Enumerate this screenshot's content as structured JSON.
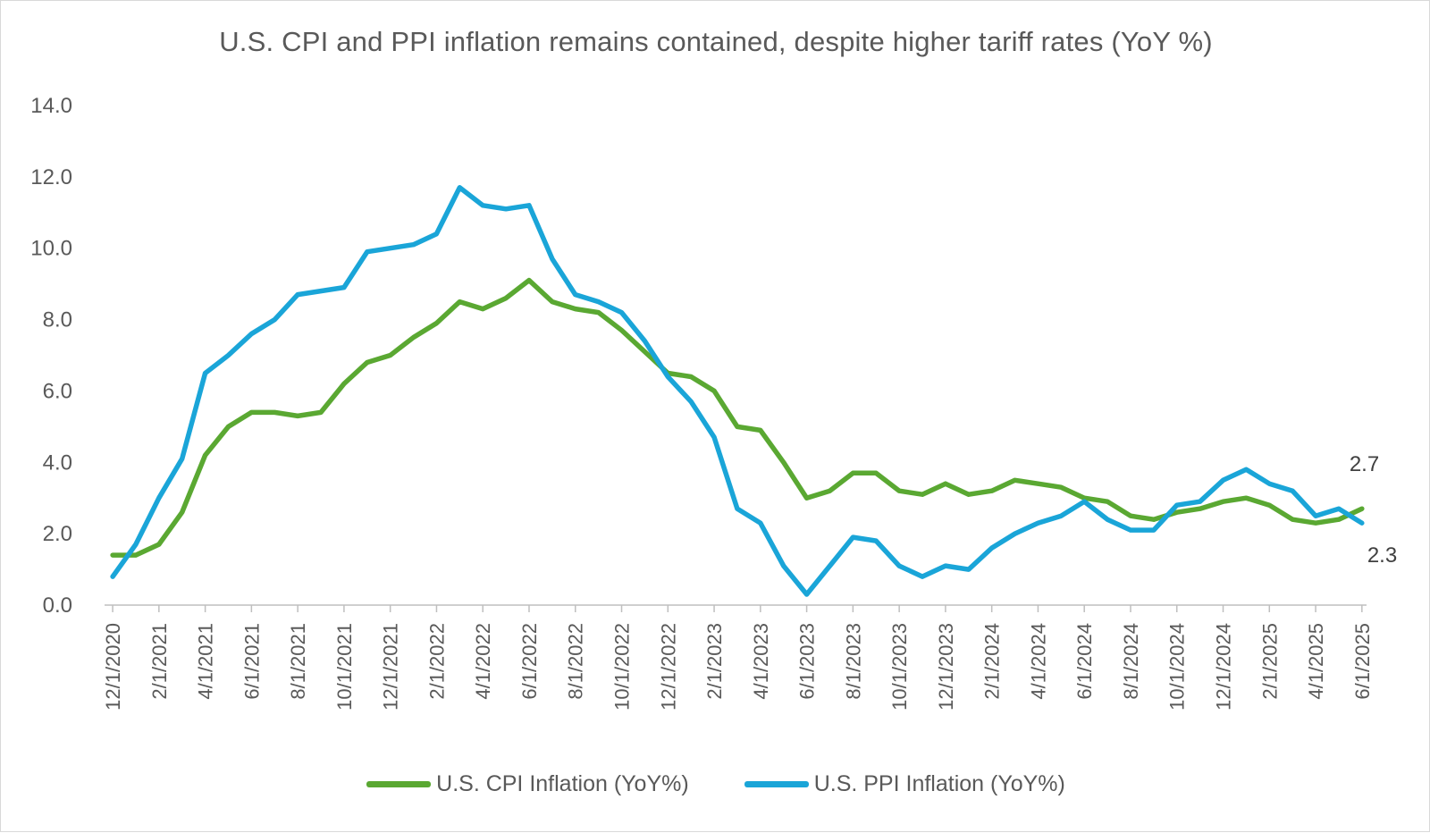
{
  "chart_data": {
    "type": "line",
    "title": "U.S. CPI and PPI inflation remains contained, despite higher tariff rates (YoY %)",
    "ylim": [
      0,
      14
    ],
    "yticks": [
      "0.0",
      "2.0",
      "4.0",
      "6.0",
      "8.0",
      "10.0",
      "12.0",
      "14.0"
    ],
    "x": [
      "12/1/2020",
      "1/1/2021",
      "2/1/2021",
      "3/1/2021",
      "4/1/2021",
      "5/1/2021",
      "6/1/2021",
      "7/1/2021",
      "8/1/2021",
      "9/1/2021",
      "10/1/2021",
      "11/1/2021",
      "12/1/2021",
      "1/1/2022",
      "2/1/2022",
      "3/1/2022",
      "4/1/2022",
      "5/1/2022",
      "6/1/2022",
      "7/1/2022",
      "8/1/2022",
      "9/1/2022",
      "10/1/2022",
      "11/1/2022",
      "12/1/2022",
      "1/1/2023",
      "2/1/2023",
      "3/1/2023",
      "4/1/2023",
      "5/1/2023",
      "6/1/2023",
      "7/1/2023",
      "8/1/2023",
      "9/1/2023",
      "10/1/2023",
      "11/1/2023",
      "12/1/2023",
      "1/1/2024",
      "2/1/2024",
      "3/1/2024",
      "4/1/2024",
      "5/1/2024",
      "6/1/2024",
      "7/1/2024",
      "8/1/2024",
      "9/1/2024",
      "10/1/2024",
      "11/1/2024",
      "12/1/2024",
      "1/1/2025",
      "2/1/2025",
      "3/1/2025",
      "4/1/2025",
      "5/1/2025",
      "6/1/2025"
    ],
    "xtick_labels": [
      "12/1/2020",
      "2/1/2021",
      "4/1/2021",
      "6/1/2021",
      "8/1/2021",
      "10/1/2021",
      "12/1/2021",
      "2/1/2022",
      "4/1/2022",
      "6/1/2022",
      "8/1/2022",
      "10/1/2022",
      "12/1/2022",
      "2/1/2023",
      "4/1/2023",
      "6/1/2023",
      "8/1/2023",
      "10/1/2023",
      "12/1/2023",
      "2/1/2024",
      "4/1/2024",
      "6/1/2024",
      "8/1/2024",
      "10/1/2024",
      "12/1/2024",
      "2/1/2025",
      "4/1/2025",
      "6/1/2025"
    ],
    "series": [
      {
        "name": "U.S. CPI Inflation (YoY%)",
        "color": "#5aa832",
        "values": [
          1.4,
          1.4,
          1.7,
          2.6,
          4.2,
          5.0,
          5.4,
          5.4,
          5.3,
          5.4,
          6.2,
          6.8,
          7.0,
          7.5,
          7.9,
          8.5,
          8.3,
          8.6,
          9.1,
          8.5,
          8.3,
          8.2,
          7.7,
          7.1,
          6.5,
          6.4,
          6.0,
          5.0,
          4.9,
          4.0,
          3.0,
          3.2,
          3.7,
          3.7,
          3.2,
          3.1,
          3.4,
          3.1,
          3.2,
          3.5,
          3.4,
          3.3,
          3.0,
          2.9,
          2.5,
          2.4,
          2.6,
          2.7,
          2.9,
          3.0,
          2.8,
          2.4,
          2.3,
          2.4,
          2.7
        ],
        "end_label": "2.7"
      },
      {
        "name": "U.S. PPI Inflation (YoY%)",
        "color": "#1aa5d8",
        "values": [
          0.8,
          1.7,
          3.0,
          4.1,
          6.5,
          7.0,
          7.6,
          8.0,
          8.7,
          8.8,
          8.9,
          9.9,
          10.0,
          10.1,
          10.4,
          11.7,
          11.2,
          11.1,
          11.2,
          9.7,
          8.7,
          8.5,
          8.2,
          7.4,
          6.4,
          5.7,
          4.7,
          2.7,
          2.3,
          1.1,
          0.3,
          1.1,
          1.9,
          1.8,
          1.1,
          0.8,
          1.1,
          1.0,
          1.6,
          2.0,
          2.3,
          2.5,
          2.9,
          2.4,
          2.1,
          2.1,
          2.8,
          2.9,
          3.5,
          3.8,
          3.4,
          3.2,
          2.5,
          2.7,
          2.3
        ],
        "end_label": "2.3"
      }
    ],
    "grid": false,
    "legend": "bottom"
  }
}
